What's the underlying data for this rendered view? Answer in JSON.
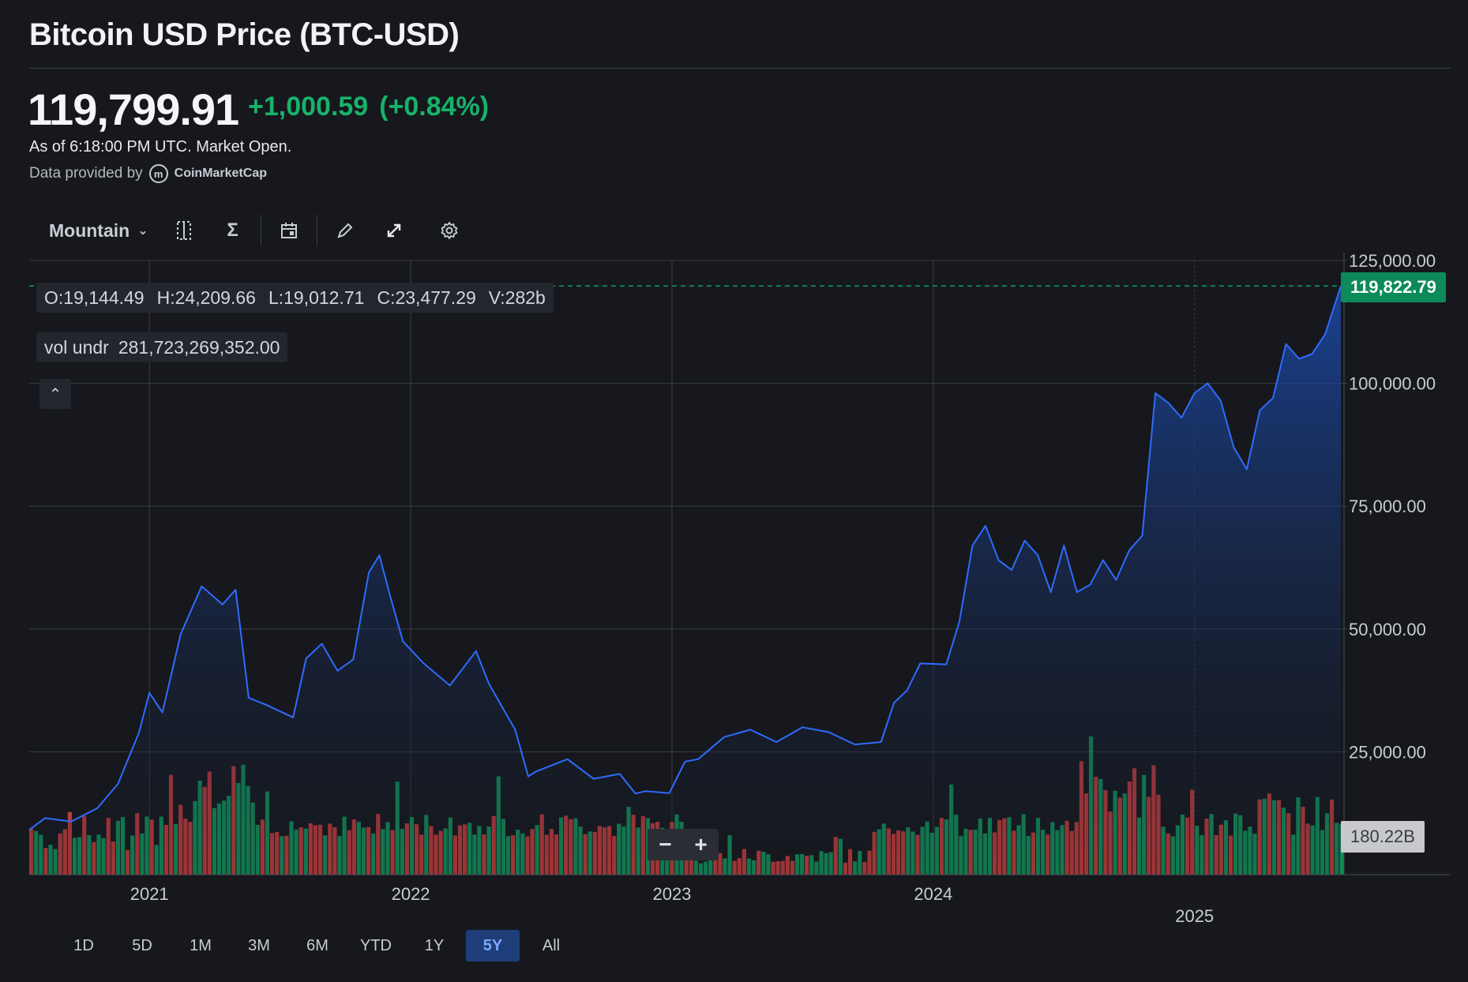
{
  "header": {
    "title": "Bitcoin USD Price (BTC-USD)",
    "price": "119,799.91",
    "change": "+1,000.59",
    "change_pct": "(+0.84%)",
    "as_of": "As of 6:18:00 PM UTC. Market Open.",
    "provided_by": "Data provided by",
    "provider": "CoinMarketCap"
  },
  "toolbar": {
    "chart_type": "Mountain",
    "icons": [
      "compare-icon",
      "indicators-icon",
      "events-calendar-icon",
      "draw-pencil-icon",
      "fullscreen-expand-icon",
      "settings-gear-icon"
    ]
  },
  "ohlc": {
    "open": "O:19,144.49",
    "high": "H:24,209.66",
    "low": "L:19,012.71",
    "close": "C:23,477.29",
    "volume": "V:282b"
  },
  "vol_undr": {
    "label": "vol undr",
    "value": "281,723,269,352.00"
  },
  "price_tag": "119,822.79",
  "volume_tag": "180.22B",
  "zoom": {
    "minus": "−",
    "plus": "+"
  },
  "ranges": [
    "1D",
    "5D",
    "1M",
    "3M",
    "6M",
    "YTD",
    "1Y",
    "5Y",
    "All"
  ],
  "active_range": "5Y",
  "colors": {
    "background": "#16181d",
    "line": "#2f6bff",
    "area_top": "#1c4fb8",
    "up": "#0f9d62",
    "down": "#d14040",
    "accent_green": "#17b26a",
    "active_range": "#1f3d78"
  },
  "chart_data": {
    "type": "area",
    "title": "Bitcoin USD Price (BTC-USD)",
    "ylim": [
      0,
      125000
    ],
    "y_ticks": [
      "125,000.00",
      "100,000.00",
      "75,000.00",
      "50,000.00",
      "25,000.00"
    ],
    "y_tick_values": [
      125000,
      100000,
      75000,
      50000,
      25000
    ],
    "x_ticks": [
      "2021",
      "2022",
      "2023",
      "2024",
      "2025"
    ],
    "x_tick_values": [
      2021.0,
      2022.0,
      2023.0,
      2024.0,
      2025.0
    ],
    "xlim": [
      2020.54,
      2025.56
    ],
    "grid": true,
    "series": [
      {
        "name": "BTC-USD",
        "x": [
          2020.54,
          2020.6,
          2020.7,
          2020.8,
          2020.88,
          2020.96,
          2021.0,
          2021.05,
          2021.12,
          2021.2,
          2021.28,
          2021.33,
          2021.38,
          2021.45,
          2021.55,
          2021.6,
          2021.66,
          2021.72,
          2021.78,
          2021.84,
          2021.88,
          2021.92,
          2021.97,
          2022.05,
          2022.15,
          2022.25,
          2022.3,
          2022.4,
          2022.45,
          2022.48,
          2022.6,
          2022.7,
          2022.8,
          2022.86,
          2022.9,
          2022.99,
          2023.05,
          2023.1,
          2023.2,
          2023.3,
          2023.4,
          2023.5,
          2023.6,
          2023.7,
          2023.8,
          2023.85,
          2023.9,
          2023.95,
          2024.05,
          2024.1,
          2024.15,
          2024.2,
          2024.25,
          2024.3,
          2024.35,
          2024.4,
          2024.45,
          2024.5,
          2024.55,
          2024.6,
          2024.65,
          2024.7,
          2024.75,
          2024.8,
          2024.85,
          2024.9,
          2024.95,
          2025.0,
          2025.05,
          2025.1,
          2025.15,
          2025.2,
          2025.25,
          2025.3,
          2025.35,
          2025.4,
          2025.45,
          2025.5,
          2025.56
        ],
        "y": [
          9100,
          11500,
          10800,
          13500,
          18500,
          28900,
          37000,
          33000,
          49000,
          58700,
          55000,
          58000,
          36000,
          34500,
          32000,
          44000,
          47000,
          41500,
          43800,
          61500,
          65000,
          57000,
          47500,
          43000,
          38500,
          45500,
          38800,
          29500,
          20000,
          21000,
          23500,
          19500,
          20500,
          16500,
          17000,
          16600,
          23000,
          23500,
          28000,
          29500,
          27000,
          30000,
          29000,
          26500,
          27000,
          35000,
          37500,
          43000,
          42800,
          51500,
          67000,
          71000,
          64000,
          62000,
          68000,
          65000,
          57500,
          67000,
          57500,
          59000,
          64000,
          60000,
          66000,
          69000,
          98000,
          96000,
          93000,
          98000,
          100000,
          96500,
          87000,
          82500,
          94500,
          97000,
          108000,
          105000,
          106000,
          110000,
          119822
        ]
      }
    ],
    "volume": {
      "name": "vol undr",
      "label": "180.22B"
    }
  }
}
